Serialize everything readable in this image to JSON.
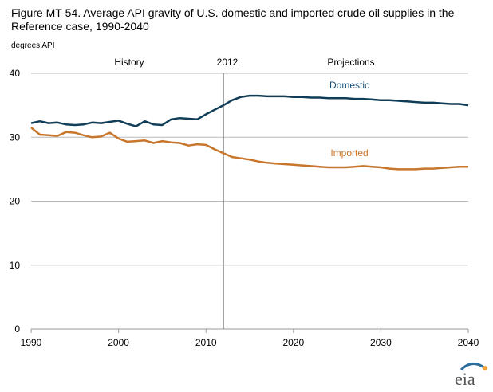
{
  "figure": {
    "title": "Figure MT-54. Average API gravity of U.S. domestic and imported crude oil supplies in the Reference case, 1990-2040",
    "unit_label": "degrees API",
    "logo_text": "eia"
  },
  "annotations": {
    "history": "History",
    "divider_year": "2012",
    "projections": "Projections"
  },
  "colors": {
    "domestic": "#0f3d57",
    "imported": "#c8762b",
    "grid": "#b9b9b9",
    "divider": "#6d6d6d",
    "axis": "#9a9a9a"
  },
  "chart_data": {
    "type": "line",
    "xlim": [
      1990,
      2040
    ],
    "ylim": [
      0,
      40
    ],
    "x_ticks": [
      1990,
      2000,
      2010,
      2020,
      2030,
      2040
    ],
    "y_ticks": [
      0,
      10,
      20,
      30,
      40
    ],
    "grid": "horizontal",
    "divider_x": 2012,
    "series": [
      {
        "name": "Domestic",
        "color": "#0f3d57",
        "x": [
          1990,
          1991,
          1992,
          1993,
          1994,
          1995,
          1996,
          1997,
          1998,
          1999,
          2000,
          2001,
          2002,
          2003,
          2004,
          2005,
          2006,
          2007,
          2008,
          2009,
          2010,
          2011,
          2012,
          2013,
          2014,
          2015,
          2016,
          2017,
          2018,
          2019,
          2020,
          2021,
          2022,
          2023,
          2024,
          2025,
          2026,
          2027,
          2028,
          2029,
          2030,
          2031,
          2032,
          2033,
          2034,
          2035,
          2036,
          2037,
          2038,
          2039,
          2040
        ],
        "values": [
          32.2,
          32.5,
          32.2,
          32.3,
          32.0,
          31.9,
          32.0,
          32.3,
          32.2,
          32.4,
          32.6,
          32.1,
          31.7,
          32.5,
          32.0,
          31.9,
          32.8,
          33.0,
          32.9,
          32.8,
          33.6,
          34.3,
          35.0,
          35.8,
          36.3,
          36.5,
          36.5,
          36.4,
          36.4,
          36.4,
          36.3,
          36.3,
          36.2,
          36.2,
          36.1,
          36.1,
          36.1,
          36.0,
          36.0,
          35.9,
          35.8,
          35.8,
          35.7,
          35.6,
          35.5,
          35.4,
          35.4,
          35.3,
          35.2,
          35.2,
          35.0
        ]
      },
      {
        "name": "Imported",
        "color": "#c8762b",
        "x": [
          1990,
          1991,
          1992,
          1993,
          1994,
          1995,
          1996,
          1997,
          1998,
          1999,
          2000,
          2001,
          2002,
          2003,
          2004,
          2005,
          2006,
          2007,
          2008,
          2009,
          2010,
          2011,
          2012,
          2013,
          2014,
          2015,
          2016,
          2017,
          2018,
          2019,
          2020,
          2021,
          2022,
          2023,
          2024,
          2025,
          2026,
          2027,
          2028,
          2029,
          2030,
          2031,
          2032,
          2033,
          2034,
          2035,
          2036,
          2037,
          2038,
          2039,
          2040
        ],
        "values": [
          31.5,
          30.4,
          30.3,
          30.2,
          30.8,
          30.7,
          30.3,
          30.0,
          30.1,
          30.7,
          29.8,
          29.3,
          29.4,
          29.5,
          29.1,
          29.4,
          29.2,
          29.1,
          28.7,
          28.9,
          28.8,
          28.1,
          27.5,
          26.9,
          26.7,
          26.5,
          26.2,
          26.0,
          25.9,
          25.8,
          25.7,
          25.6,
          25.5,
          25.4,
          25.3,
          25.3,
          25.3,
          25.4,
          25.5,
          25.4,
          25.3,
          25.1,
          25.0,
          25.0,
          25.0,
          25.1,
          25.1,
          25.2,
          25.3,
          25.4,
          25.4
        ]
      }
    ]
  }
}
